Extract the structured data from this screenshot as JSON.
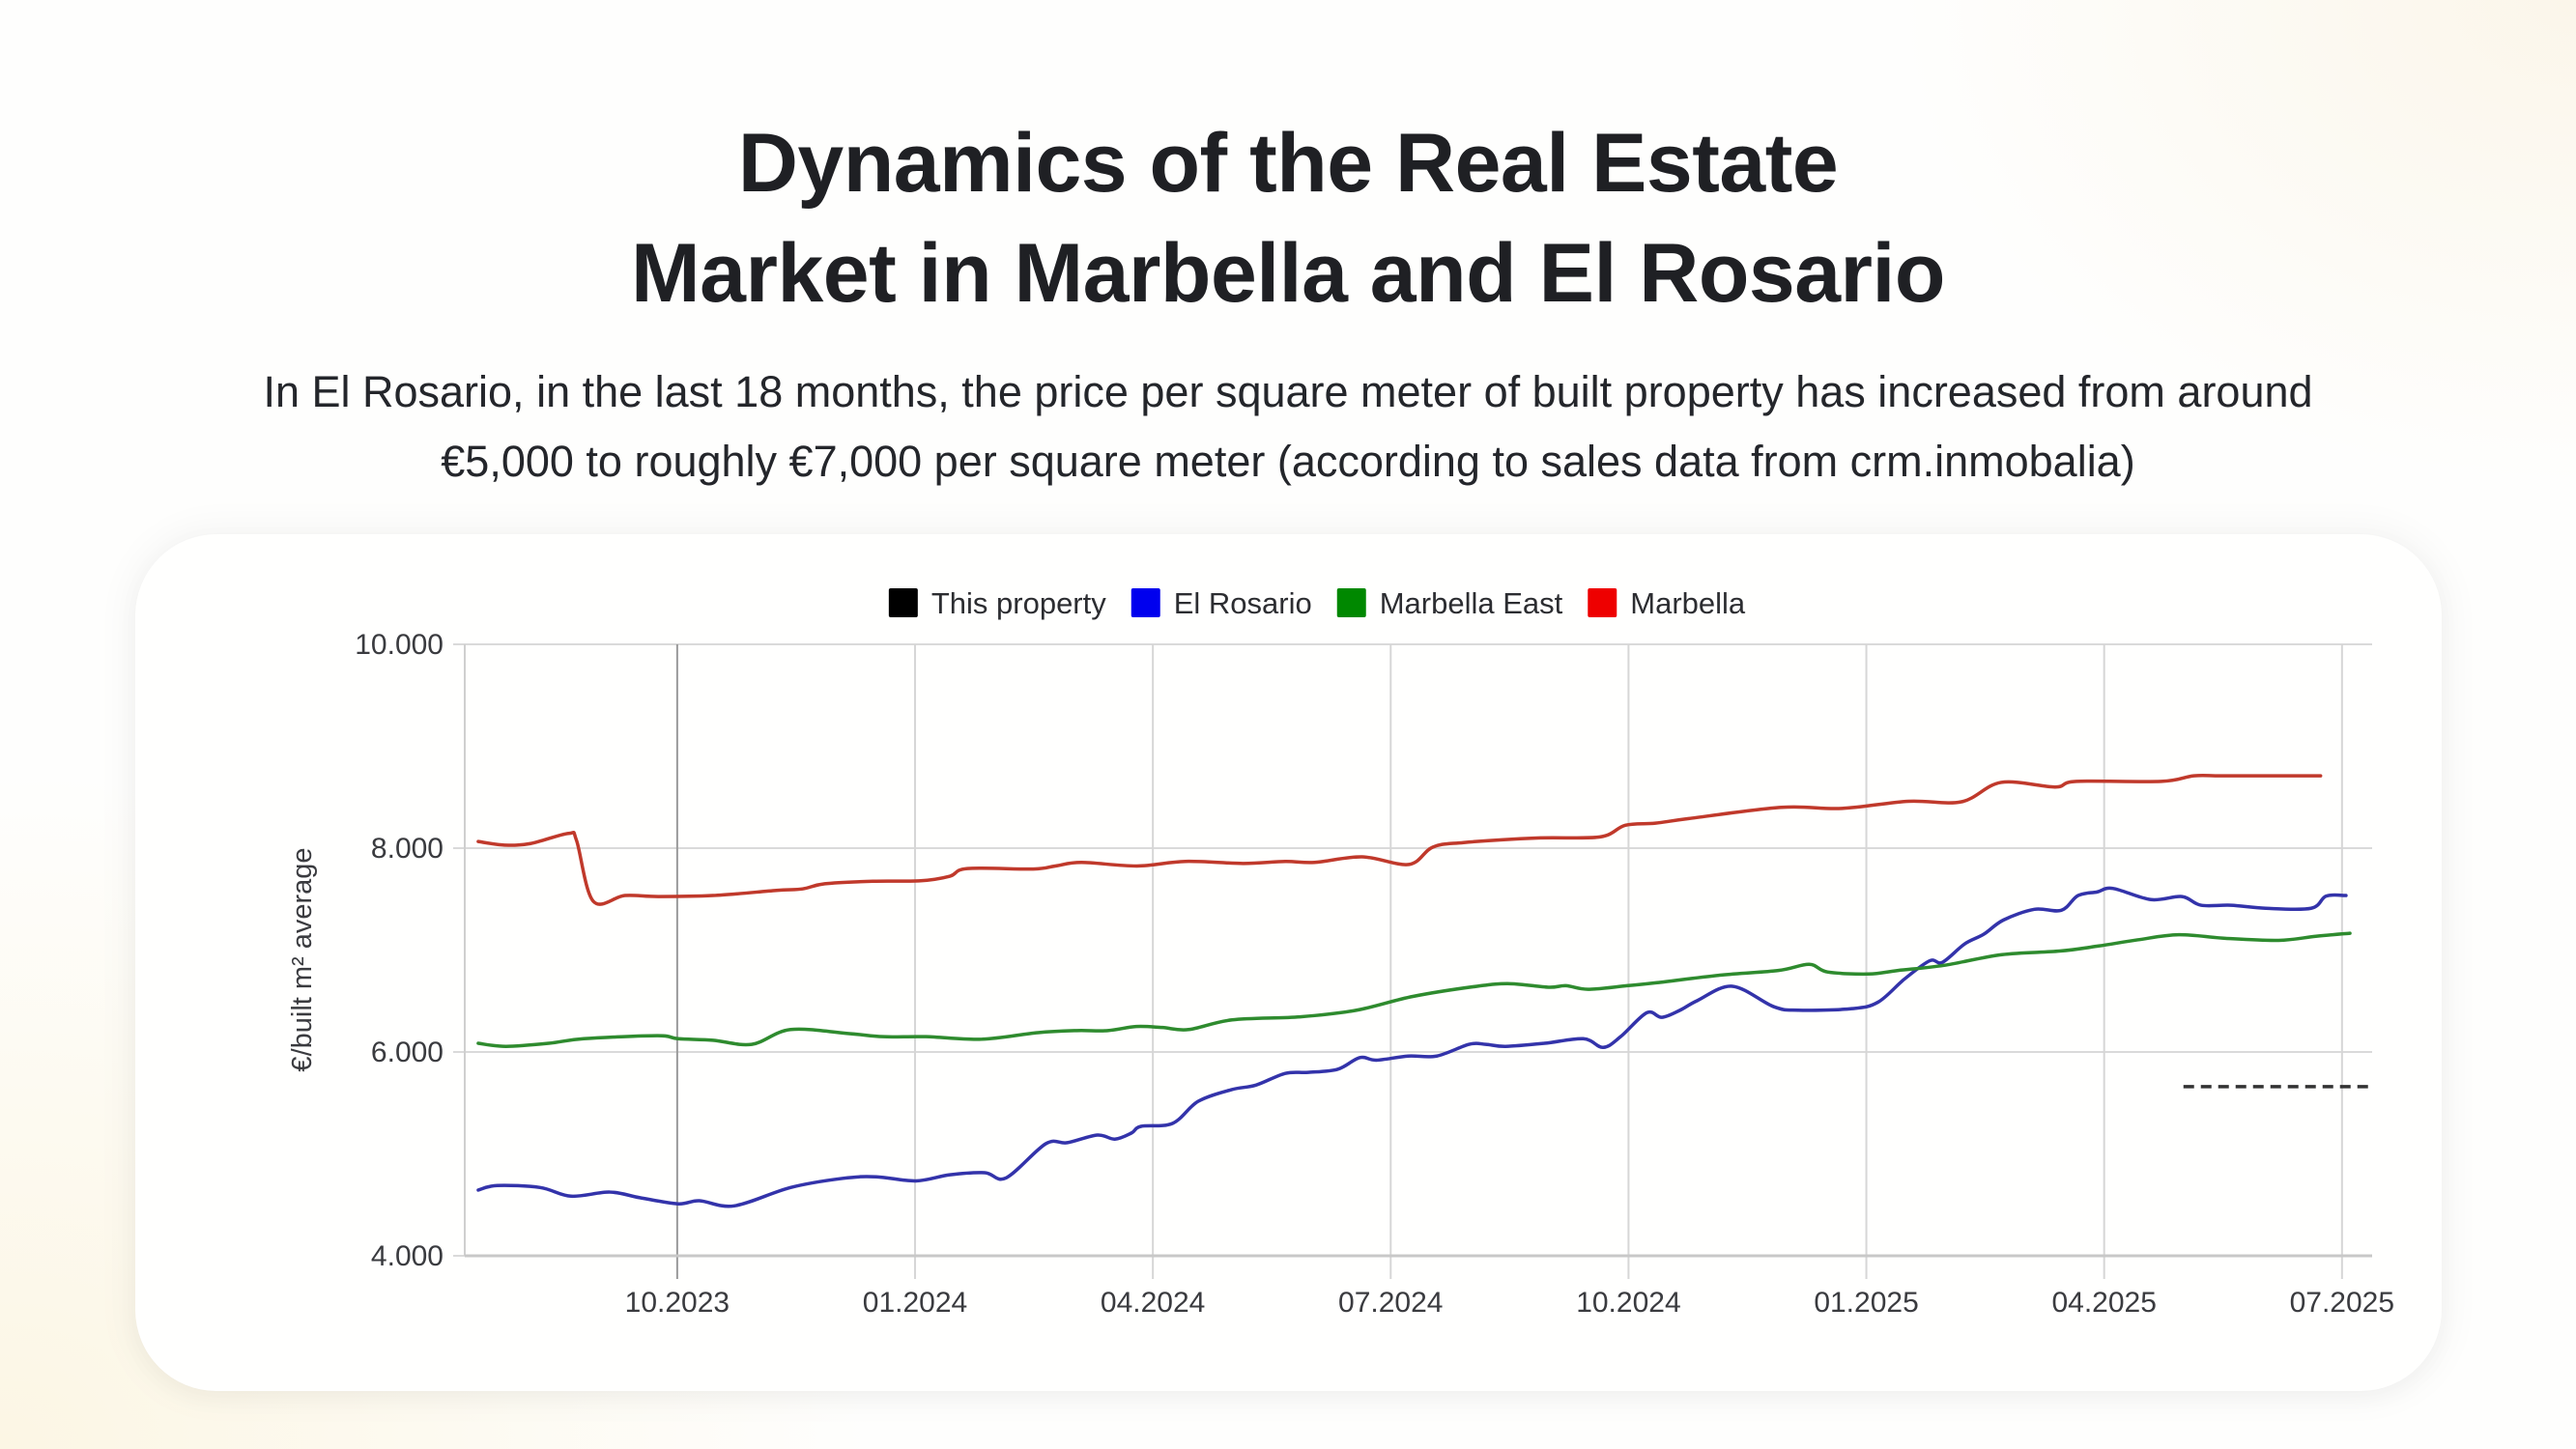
{
  "header": {
    "title_lines": [
      "Dynamics of the Real Estate",
      "Market in Marbella and El Rosario"
    ],
    "subtitle_lines": [
      "In El Rosario, in the last 18 months, the price per square meter of built property has increased from around",
      "€5,000 to roughly €7,000 per square meter (according to sales data from crm.inmobalia)"
    ]
  },
  "chart_data": {
    "type": "line",
    "title": "",
    "xlabel": "",
    "ylabel": "€/built m² average",
    "x_unit": "months since 01.2023",
    "xlim": [
      6.32,
      30.38
    ],
    "ylim": [
      4000,
      10000
    ],
    "y_ticks": [
      {
        "value": 4000,
        "label": "4.000"
      },
      {
        "value": 6000,
        "label": "6.000"
      },
      {
        "value": 8000,
        "label": "8.000"
      },
      {
        "value": 10000,
        "label": "10.000"
      }
    ],
    "x_ticks": [
      {
        "value": 9,
        "label": "10.2023"
      },
      {
        "value": 12,
        "label": "01.2024"
      },
      {
        "value": 15,
        "label": "04.2024"
      },
      {
        "value": 18,
        "label": "07.2024"
      },
      {
        "value": 21,
        "label": "10.2024"
      },
      {
        "value": 24,
        "label": "01.2025"
      },
      {
        "value": 27,
        "label": "04.2025"
      },
      {
        "value": 30,
        "label": "07.2025"
      }
    ],
    "grid": true,
    "legend_position": "top-center",
    "series": [
      {
        "name": "This property",
        "color": "#000000",
        "dashed": true,
        "x": [
          28.0,
          30.36
        ],
        "values": [
          5660,
          5660
        ]
      },
      {
        "name": "El Rosario",
        "color": "#3333aa",
        "legend_color": "#0000ee",
        "x": [
          6.49,
          6.73,
          7.27,
          7.66,
          8.15,
          8.53,
          9.01,
          9.28,
          9.72,
          10.43,
          11.09,
          11.51,
          12.01,
          12.44,
          12.88,
          13.15,
          13.65,
          13.92,
          14.3,
          14.52,
          14.73,
          14.85,
          15.25,
          15.57,
          15.99,
          16.3,
          16.67,
          16.96,
          17.33,
          17.61,
          17.82,
          18.22,
          18.58,
          18.99,
          19.2,
          19.45,
          19.94,
          20.43,
          20.68,
          20.9,
          21.23,
          21.42,
          21.65,
          21.87,
          22.31,
          22.83,
          23.14,
          23.82,
          24.15,
          24.48,
          24.8,
          24.96,
          25.24,
          25.48,
          25.73,
          26.12,
          26.46,
          26.67,
          26.91,
          27.11,
          27.59,
          27.98,
          28.22,
          28.6,
          29.04,
          29.61,
          29.8,
          30.05
        ],
        "values": [
          4645,
          4690,
          4670,
          4585,
          4625,
          4570,
          4510,
          4540,
          4490,
          4670,
          4760,
          4775,
          4735,
          4795,
          4815,
          4765,
          5100,
          5110,
          5185,
          5145,
          5205,
          5270,
          5300,
          5515,
          5630,
          5675,
          5790,
          5800,
          5830,
          5945,
          5920,
          5960,
          5960,
          6075,
          6075,
          6055,
          6085,
          6130,
          6045,
          6150,
          6385,
          6340,
          6410,
          6505,
          6645,
          6445,
          6410,
          6425,
          6490,
          6715,
          6895,
          6880,
          7060,
          7155,
          7295,
          7400,
          7390,
          7535,
          7570,
          7605,
          7495,
          7525,
          7440,
          7440,
          7410,
          7410,
          7530,
          7535
        ]
      },
      {
        "name": "Marbella East",
        "color": "#2e8b2e",
        "legend_color": "#008800",
        "x": [
          6.49,
          6.84,
          7.38,
          7.82,
          8.75,
          9.01,
          9.45,
          9.94,
          10.43,
          11.17,
          11.6,
          12.14,
          12.84,
          13.55,
          14.04,
          14.43,
          14.79,
          15.12,
          15.45,
          16.0,
          16.86,
          17.57,
          18.28,
          19.09,
          19.51,
          19.99,
          20.21,
          20.49,
          20.98,
          21.36,
          22.17,
          22.89,
          23.28,
          23.51,
          24.03,
          24.4,
          24.98,
          25.71,
          26.44,
          26.93,
          27.42,
          27.94,
          28.53,
          29.2,
          29.67,
          30.1
        ],
        "values": [
          6085,
          6055,
          6085,
          6130,
          6160,
          6130,
          6115,
          6075,
          6220,
          6180,
          6150,
          6150,
          6125,
          6190,
          6210,
          6210,
          6250,
          6240,
          6220,
          6315,
          6345,
          6410,
          6545,
          6645,
          6670,
          6635,
          6650,
          6615,
          6650,
          6680,
          6755,
          6800,
          6860,
          6785,
          6765,
          6800,
          6850,
          6955,
          6990,
          7040,
          7100,
          7150,
          7115,
          7095,
          7135,
          7165
        ]
      },
      {
        "name": "Marbella",
        "color": "#c0392b",
        "legend_color": "#ee0000",
        "x": [
          6.49,
          6.82,
          7.15,
          7.63,
          7.73,
          7.94,
          8.34,
          8.76,
          9.45,
          10.25,
          10.58,
          10.86,
          11.47,
          12.07,
          12.44,
          12.66,
          13.49,
          13.77,
          14.1,
          14.8,
          15.41,
          16.14,
          16.67,
          17.04,
          17.64,
          18.23,
          18.53,
          18.92,
          19.85,
          20.64,
          20.96,
          21.34,
          21.76,
          22.93,
          23.69,
          24.53,
          25.2,
          25.7,
          26.38,
          26.65,
          27.72,
          28.13,
          28.47,
          29.14,
          29.73
        ],
        "values": [
          8065,
          8030,
          8045,
          8145,
          8075,
          7480,
          7535,
          7525,
          7535,
          7585,
          7600,
          7650,
          7675,
          7680,
          7725,
          7800,
          7795,
          7825,
          7860,
          7825,
          7870,
          7850,
          7870,
          7860,
          7915,
          7840,
          8010,
          8055,
          8100,
          8110,
          8225,
          8245,
          8290,
          8400,
          8390,
          8460,
          8455,
          8645,
          8600,
          8655,
          8655,
          8710,
          8710,
          8710,
          8710
        ]
      }
    ]
  }
}
